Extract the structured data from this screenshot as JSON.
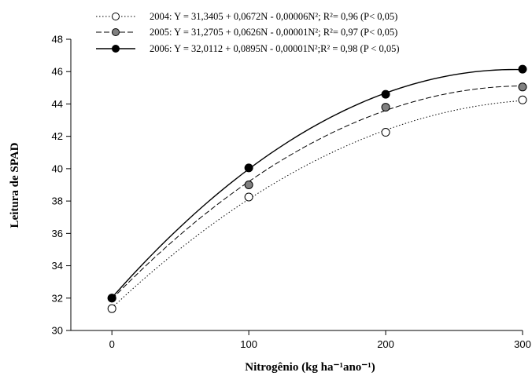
{
  "chart_data": {
    "type": "scatter",
    "xlabel": "Nitrogênio (kg ha⁻¹ano⁻¹)",
    "ylabel": "Leitura de SPAD",
    "xlim": [
      -30,
      300
    ],
    "ylim": [
      30,
      48
    ],
    "x_ticks": [
      "0",
      "100",
      "200",
      "300"
    ],
    "y_ticks": [
      "30",
      "32",
      "34",
      "36",
      "38",
      "40",
      "42",
      "44",
      "46",
      "48"
    ],
    "legend_position": "top",
    "series": [
      {
        "name": "2004: Y = 31,3405 + 0,0672N - 0,00006N²; R²= 0,96 (P< 0,05)",
        "marker": "open-circle",
        "line_style": "dotted",
        "points": [
          [
            0,
            31.35
          ],
          [
            100,
            38.25
          ],
          [
            200,
            42.25
          ],
          [
            300,
            44.25
          ]
        ]
      },
      {
        "name": "2005: Y = 31,2705 + 0,0626N - 0,00001N²; R²= 0,97 (P< 0,05)",
        "marker": "gray-circle",
        "line_style": "dashed",
        "points": [
          [
            0,
            32.0
          ],
          [
            100,
            39.0
          ],
          [
            200,
            43.8
          ],
          [
            300,
            45.05
          ]
        ]
      },
      {
        "name": "2006: Y = 32,0112 + 0,0895N - 0,00001N²;R² = 0,98 (P < 0,05)",
        "marker": "filled-circle",
        "line_style": "solid",
        "points": [
          [
            0,
            32.0
          ],
          [
            100,
            40.05
          ],
          [
            200,
            44.6
          ],
          [
            300,
            46.15
          ]
        ]
      }
    ]
  }
}
